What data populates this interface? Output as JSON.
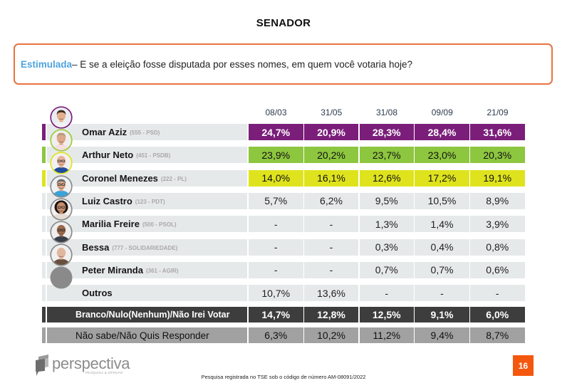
{
  "title": "SENADOR",
  "question": {
    "label": "Estimulada",
    "text": " – E se a eleição fosse disputada por esses nomes, em quem você votaria hoje?"
  },
  "colors": {
    "question_border": "#e8733f",
    "question_label": "#4ea4df",
    "neutral_row": "#e6e9ea",
    "page_badge": "#f4580f"
  },
  "avatars": [
    {
      "kind": "photo",
      "border": "#7b1e7a"
    },
    {
      "kind": "photo",
      "border": "#9ccc3a"
    },
    {
      "kind": "photo",
      "border": "#dfe31d"
    },
    {
      "kind": "photo",
      "border": "#8a8a8a"
    },
    {
      "kind": "photo",
      "border": "#8a8a8a"
    },
    {
      "kind": "photo",
      "border": "#8a8a8a"
    },
    {
      "kind": "photo",
      "border": "#8a8a8a"
    },
    {
      "kind": "placeholder",
      "border": "#8a8a8a"
    }
  ],
  "chart_data": {
    "type": "table",
    "title": "SENADOR",
    "columns": [
      "08/03",
      "31/05",
      "31/08",
      "09/09",
      "21/09"
    ],
    "unit": "%",
    "decimal_separator": ",",
    "missing_symbol": "-",
    "rows": [
      {
        "label": "Omar Aziz",
        "detail": "(555 - PSD)",
        "values": [
          24.7,
          20.9,
          28.3,
          28.4,
          31.6
        ],
        "kind": "candidate",
        "marker": "#7b1e7a",
        "fill": "#7b1e7a",
        "text_color": "#ffffff",
        "bold": true
      },
      {
        "label": "Arthur Neto",
        "detail": "(451 - PSDB)",
        "values": [
          23.9,
          20.2,
          23.7,
          23.0,
          20.3
        ],
        "kind": "candidate",
        "marker": "#8dc63f",
        "fill": "#8dc63f",
        "text_color": "#111111",
        "bold": false
      },
      {
        "label": "Coronel Menezes",
        "detail": "(222 - PL)",
        "values": [
          14.0,
          16.1,
          12.6,
          17.2,
          19.1
        ],
        "kind": "candidate",
        "marker": "#dfe31d",
        "fill": "#dfe31d",
        "text_color": "#111111",
        "bold": false
      },
      {
        "label": "Luiz Castro",
        "detail": "(123 - PDT)",
        "values": [
          5.7,
          6.2,
          9.5,
          10.5,
          8.9
        ],
        "kind": "candidate",
        "marker": "#e6e9ea",
        "fill": "#e6e9ea",
        "text_color": "#1e1e1e",
        "bold": false
      },
      {
        "label": "Marilia Freire",
        "detail": "(500 - PSOL)",
        "values": [
          null,
          null,
          1.3,
          1.4,
          3.9
        ],
        "kind": "candidate",
        "marker": "#e6e9ea",
        "fill": "#e6e9ea",
        "text_color": "#1e1e1e",
        "bold": false
      },
      {
        "label": "Bessa",
        "detail": "(777 - SOLIDARIEDADE)",
        "values": [
          null,
          null,
          0.3,
          0.4,
          0.8
        ],
        "kind": "candidate",
        "marker": "#e6e9ea",
        "fill": "#e6e9ea",
        "text_color": "#1e1e1e",
        "bold": false
      },
      {
        "label": "Peter Miranda",
        "detail": "(361 - AGIR)",
        "values": [
          null,
          null,
          0.7,
          0.7,
          0.6
        ],
        "kind": "candidate",
        "marker": "#e6e9ea",
        "fill": "#e6e9ea",
        "text_color": "#1e1e1e",
        "bold": false
      },
      {
        "label": "Outros",
        "detail": "",
        "values": [
          10.7,
          13.6,
          null,
          null,
          null
        ],
        "kind": "candidate",
        "marker": "#e6e9ea",
        "fill": "#e6e9ea",
        "text_color": "#1e1e1e",
        "bold": false
      },
      {
        "label": "Branco/Nulo(Nenhum)/Não Irei Votar",
        "detail": "",
        "values": [
          14.7,
          12.8,
          12.5,
          9.1,
          6.0
        ],
        "kind": "summary",
        "marker": "#3d3d3d",
        "fill": "#3d3d3d",
        "text_color": "#ffffff",
        "bold": true
      },
      {
        "label": "Não sabe/Não Quis Responder",
        "detail": "",
        "values": [
          6.3,
          10.2,
          11.2,
          9.4,
          8.7
        ],
        "kind": "summary",
        "marker": "#a1a1a1",
        "fill": "#a1a1a1",
        "text_color": "#111111",
        "bold": false
      }
    ]
  },
  "footer": {
    "logo": "perspectiva",
    "logo_tagline": "pesquisa & opinião",
    "note": "Pesquisa registrada no TSE sob o código de número AM-08091/2022",
    "page_number": "16"
  }
}
